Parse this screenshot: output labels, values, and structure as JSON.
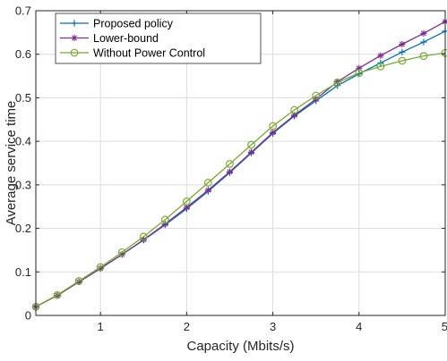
{
  "chart_data": {
    "type": "line",
    "xlabel": "Capacity (Mbits/s)",
    "ylabel": "Average service time",
    "xlim": [
      0.25,
      5
    ],
    "ylim": [
      0,
      0.7
    ],
    "xticks": [
      1,
      2,
      3,
      4,
      5
    ],
    "xtick_labels": [
      "1",
      "2",
      "3",
      "4",
      "5"
    ],
    "yticks": [
      0,
      0.1,
      0.2,
      0.3,
      0.4,
      0.5,
      0.6,
      0.7
    ],
    "ytick_labels": [
      "0",
      "0.1",
      "0.2",
      "0.3",
      "0.4",
      "0.5",
      "0.6",
      "0.7"
    ],
    "grid": true,
    "legend_position": "top-left",
    "x": [
      0.25,
      0.5,
      0.75,
      1.0,
      1.25,
      1.5,
      1.75,
      2.0,
      2.25,
      2.5,
      2.75,
      3.0,
      3.25,
      3.5,
      3.75,
      4.0,
      4.25,
      4.5,
      4.75,
      5.0
    ],
    "series": [
      {
        "name": "Proposed policy",
        "color": "#0072BD",
        "marker": "plus",
        "values": [
          0.02,
          0.046,
          0.077,
          0.108,
          0.14,
          0.173,
          0.208,
          0.245,
          0.285,
          0.328,
          0.373,
          0.418,
          0.458,
          0.493,
          0.528,
          0.555,
          0.58,
          0.605,
          0.628,
          0.653
        ]
      },
      {
        "name": "Lower-bound",
        "color": "#7E2F8E",
        "marker": "asterisk",
        "values": [
          0.02,
          0.046,
          0.077,
          0.108,
          0.14,
          0.174,
          0.21,
          0.248,
          0.288,
          0.33,
          0.375,
          0.42,
          0.46,
          0.497,
          0.537,
          0.568,
          0.597,
          0.623,
          0.648,
          0.675
        ]
      },
      {
        "name": "Without Power Control",
        "color": "#77AC30",
        "marker": "circle",
        "values": [
          0.02,
          0.047,
          0.079,
          0.111,
          0.145,
          0.181,
          0.22,
          0.262,
          0.305,
          0.348,
          0.392,
          0.435,
          0.472,
          0.505,
          0.535,
          0.557,
          0.572,
          0.585,
          0.596,
          0.603
        ]
      }
    ]
  }
}
